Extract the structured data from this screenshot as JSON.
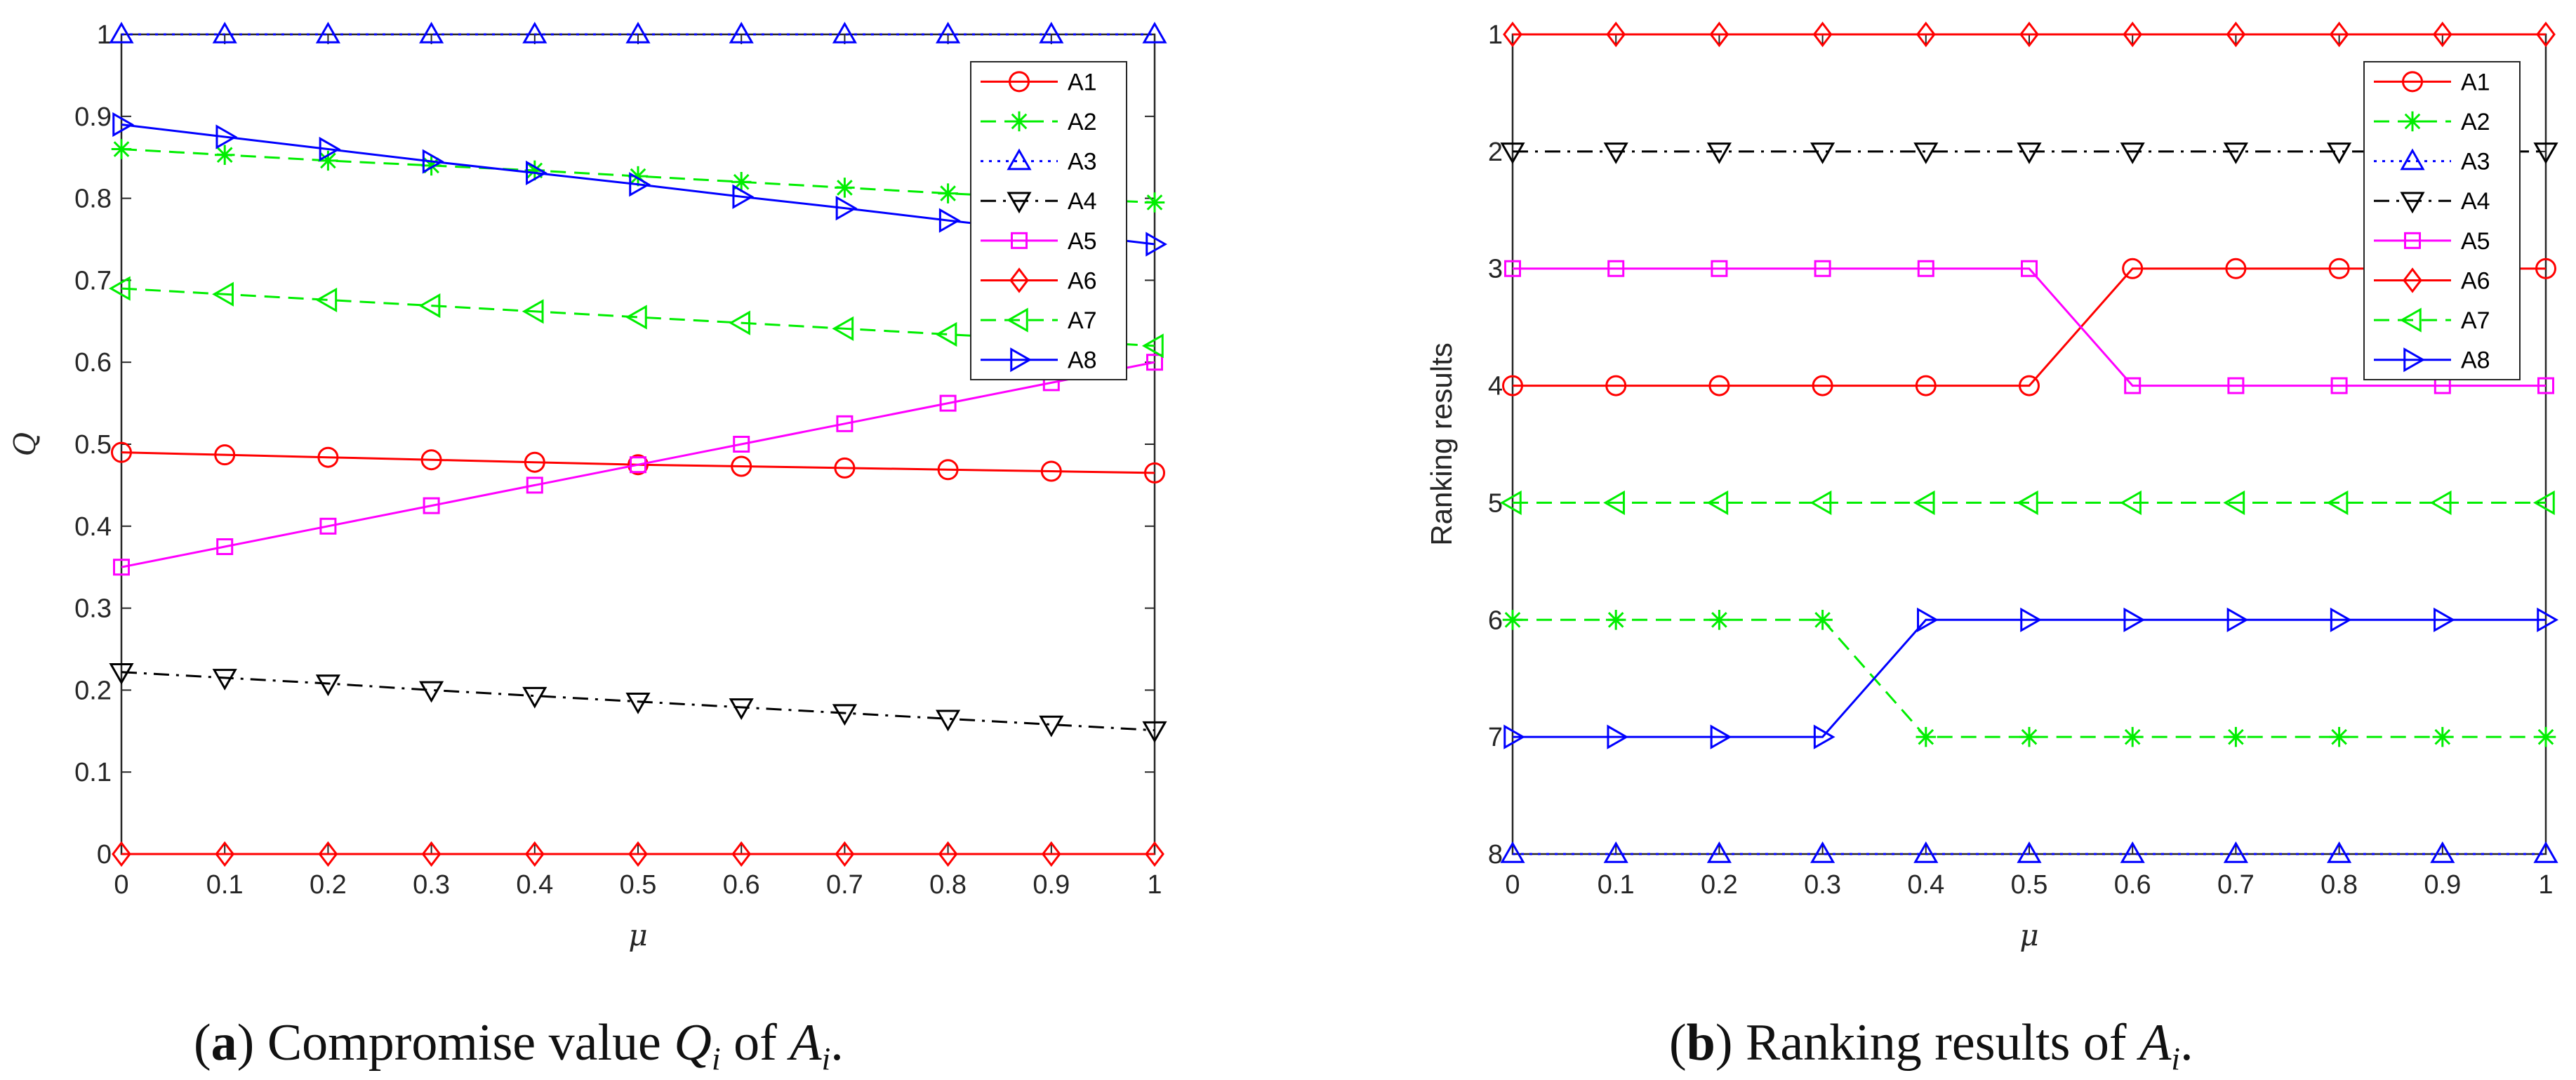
{
  "chart_data": [
    {
      "type": "line",
      "title": "",
      "xlabel": "μ",
      "ylabel": "Q",
      "x": [
        0,
        0.1,
        0.2,
        0.3,
        0.4,
        0.5,
        0.6,
        0.7,
        0.8,
        0.9,
        1
      ],
      "xticks": [
        "0",
        "0.1",
        "0.2",
        "0.3",
        "0.4",
        "0.5",
        "0.6",
        "0.7",
        "0.8",
        "0.9",
        "1"
      ],
      "yticks": [
        "0",
        "0.1",
        "0.2",
        "0.3",
        "0.4",
        "0.5",
        "0.6",
        "0.7",
        "0.8",
        "0.9",
        "1"
      ],
      "xlim": [
        0,
        1
      ],
      "ylim": [
        0,
        1
      ],
      "ytick_values": [
        0,
        0.1,
        0.2,
        0.3,
        0.4,
        0.5,
        0.6,
        0.7,
        0.8,
        0.9,
        1
      ],
      "y_reversed": false,
      "legend_position": "top-right",
      "series": [
        {
          "name": "A1",
          "color": "#ff0000",
          "dash": "solid",
          "marker": "circle",
          "values": [
            0.49,
            0.487,
            0.484,
            0.481,
            0.478,
            0.475,
            0.473,
            0.471,
            0.469,
            0.467,
            0.465
          ]
        },
        {
          "name": "A2",
          "color": "#00ee00",
          "dash": "dashed",
          "marker": "asterisk",
          "values": [
            0.86,
            0.853,
            0.846,
            0.84,
            0.834,
            0.827,
            0.82,
            0.813,
            0.806,
            0.8,
            0.795
          ]
        },
        {
          "name": "A3",
          "color": "#0000ff",
          "dash": "dotted",
          "marker": "triangle-up",
          "values": [
            1,
            1,
            1,
            1,
            1,
            1,
            1,
            1,
            1,
            1,
            1
          ]
        },
        {
          "name": "A4",
          "color": "#000000",
          "dash": "dashdot",
          "marker": "triangle-down",
          "values": [
            0.222,
            0.215,
            0.208,
            0.2,
            0.193,
            0.186,
            0.179,
            0.172,
            0.165,
            0.158,
            0.151
          ]
        },
        {
          "name": "A5",
          "color": "#ff00ff",
          "dash": "solid",
          "marker": "square",
          "values": [
            0.35,
            0.375,
            0.4,
            0.425,
            0.45,
            0.475,
            0.5,
            0.525,
            0.55,
            0.575,
            0.6
          ]
        },
        {
          "name": "A6",
          "color": "#ff0000",
          "dash": "solid",
          "marker": "diamond",
          "values": [
            0,
            0,
            0,
            0,
            0,
            0,
            0,
            0,
            0,
            0,
            0
          ]
        },
        {
          "name": "A7",
          "color": "#00ee00",
          "dash": "dashed",
          "marker": "triangle-left",
          "values": [
            0.69,
            0.683,
            0.676,
            0.669,
            0.662,
            0.655,
            0.648,
            0.641,
            0.634,
            0.627,
            0.62
          ]
        },
        {
          "name": "A8",
          "color": "#0000ff",
          "dash": "solid",
          "marker": "triangle-right",
          "values": [
            0.89,
            0.875,
            0.86,
            0.845,
            0.831,
            0.817,
            0.802,
            0.788,
            0.773,
            0.759,
            0.744
          ]
        }
      ]
    },
    {
      "type": "line",
      "title": "",
      "xlabel": "μ",
      "ylabel": "Ranking results",
      "x": [
        0,
        0.1,
        0.2,
        0.3,
        0.4,
        0.5,
        0.6,
        0.7,
        0.8,
        0.9,
        1
      ],
      "xticks": [
        "0",
        "0.1",
        "0.2",
        "0.3",
        "0.4",
        "0.5",
        "0.6",
        "0.7",
        "0.8",
        "0.9",
        "1"
      ],
      "yticks": [
        "1",
        "2",
        "3",
        "4",
        "5",
        "6",
        "7",
        "8"
      ],
      "xlim": [
        0,
        1
      ],
      "ylim": [
        1,
        8
      ],
      "ytick_values": [
        1,
        2,
        3,
        4,
        5,
        6,
        7,
        8
      ],
      "y_reversed": true,
      "legend_position": "top-right",
      "series": [
        {
          "name": "A1",
          "color": "#ff0000",
          "dash": "solid",
          "marker": "circle",
          "values": [
            4,
            4,
            4,
            4,
            4,
            4,
            3,
            3,
            3,
            3,
            3
          ]
        },
        {
          "name": "A2",
          "color": "#00ee00",
          "dash": "dashed",
          "marker": "asterisk",
          "values": [
            6,
            6,
            6,
            6,
            7,
            7,
            7,
            7,
            7,
            7,
            7
          ]
        },
        {
          "name": "A3",
          "color": "#0000ff",
          "dash": "dotted",
          "marker": "triangle-up",
          "values": [
            8,
            8,
            8,
            8,
            8,
            8,
            8,
            8,
            8,
            8,
            8
          ]
        },
        {
          "name": "A4",
          "color": "#000000",
          "dash": "dashdot",
          "marker": "triangle-down",
          "values": [
            2,
            2,
            2,
            2,
            2,
            2,
            2,
            2,
            2,
            2,
            2
          ]
        },
        {
          "name": "A5",
          "color": "#ff00ff",
          "dash": "solid",
          "marker": "square",
          "values": [
            3,
            3,
            3,
            3,
            3,
            3,
            4,
            4,
            4,
            4,
            4
          ]
        },
        {
          "name": "A6",
          "color": "#ff0000",
          "dash": "solid",
          "marker": "diamond",
          "values": [
            1,
            1,
            1,
            1,
            1,
            1,
            1,
            1,
            1,
            1,
            1
          ]
        },
        {
          "name": "A7",
          "color": "#00ee00",
          "dash": "dashed",
          "marker": "triangle-left",
          "values": [
            5,
            5,
            5,
            5,
            5,
            5,
            5,
            5,
            5,
            5,
            5
          ]
        },
        {
          "name": "A8",
          "color": "#0000ff",
          "dash": "solid",
          "marker": "triangle-right",
          "values": [
            7,
            7,
            7,
            7,
            6,
            6,
            6,
            6,
            6,
            6,
            6
          ]
        }
      ]
    }
  ],
  "captions": [
    {
      "label": "a",
      "text": "Compromise value",
      "sym1": "Q",
      "sym1_sub": "i",
      "mid": "of",
      "sym2": "A",
      "sym2_sub": "i",
      "end": "."
    },
    {
      "label": "b",
      "text": "Ranking results of",
      "sym1": "A",
      "sym1_sub": "i",
      "end": "."
    }
  ]
}
